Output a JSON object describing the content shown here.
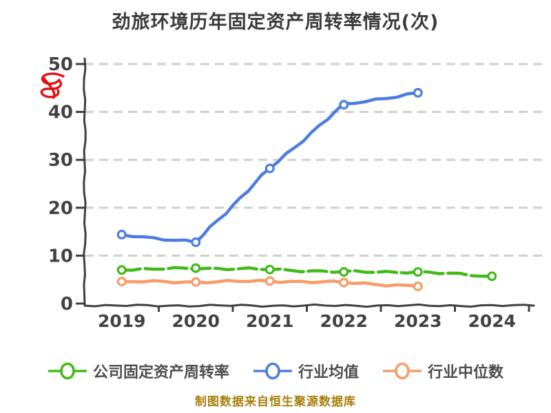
{
  "title": "劲旅环境历年固定资产周转率情况(次)",
  "watermark": {
    "icon": "red-scribble",
    "color": "#e11212"
  },
  "footer": {
    "text": "制图数据来自恒生聚源数据库",
    "color": "#a87e0a"
  },
  "colors": {
    "background": "#ffffff",
    "title_text": "#3b3b3b",
    "axis": "#3f3f3f",
    "tick_label": "#424242",
    "gridline": "#cfcfcf",
    "legend_text": "#4d4d4d"
  },
  "chart_data": {
    "type": "line",
    "title": "劲旅环境历年固定资产周转率情况(次)",
    "categories": [
      "2019",
      "2020",
      "2021",
      "2022",
      "2023",
      "2024"
    ],
    "series": [
      {
        "name": "公司固定资产周转率",
        "color": "#41ba16",
        "dashed": true,
        "values": [
          7.0,
          7.4,
          7.1,
          6.6,
          6.6,
          5.7
        ]
      },
      {
        "name": "行业均值",
        "color": "#4c7ce0",
        "dashed": false,
        "values": [
          14.4,
          12.8,
          28.2,
          41.5,
          44.0,
          null
        ]
      },
      {
        "name": "行业中位数",
        "color": "#fa9a68",
        "dashed": false,
        "values": [
          4.6,
          4.5,
          4.7,
          4.4,
          3.6,
          null
        ]
      }
    ],
    "xlabel": "",
    "ylabel": "",
    "ylim": [
      0,
      50
    ],
    "yticks": [
      0,
      10,
      20,
      30,
      40,
      50
    ],
    "grid": "horizontal-dashed",
    "legend_position": "bottom",
    "style": "hand-drawn (xkcd-like), white circle markers with colored rings"
  }
}
